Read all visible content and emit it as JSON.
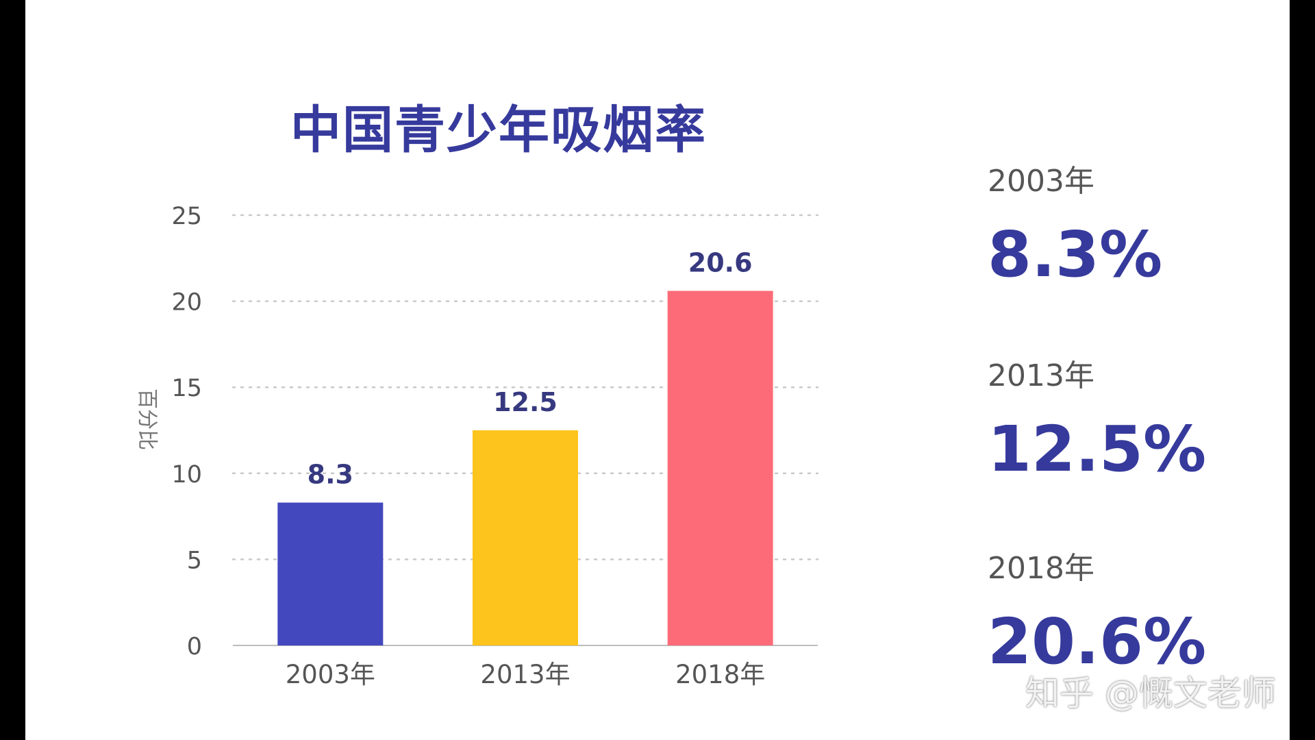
{
  "colors": {
    "title": "#363a9c",
    "label": "#36397f",
    "grid": "#c9c9c9",
    "axis": "#bdbdbd",
    "tick": "#555555"
  },
  "chart_data": {
    "type": "bar",
    "title": "中国青少年吸烟率",
    "xlabel": "",
    "ylabel": "百分比",
    "ylim": [
      0,
      25
    ],
    "yticks": [
      0,
      5,
      10,
      15,
      20,
      25
    ],
    "categories": [
      "2003年",
      "2013年",
      "2018年"
    ],
    "values": [
      8.3,
      12.5,
      20.6
    ],
    "data_labels": [
      "8.3",
      "12.5",
      "20.6"
    ],
    "bar_colors": [
      "#4448bf",
      "#fcc41d",
      "#fd6b78"
    ],
    "grid": true,
    "gridlines": "dotted"
  },
  "summary": [
    {
      "year": "2003年",
      "value": "8.3%"
    },
    {
      "year": "2013年",
      "value": "12.5%"
    },
    {
      "year": "2018年",
      "value": "20.6%"
    }
  ],
  "watermark": "知乎 @慨文老师"
}
